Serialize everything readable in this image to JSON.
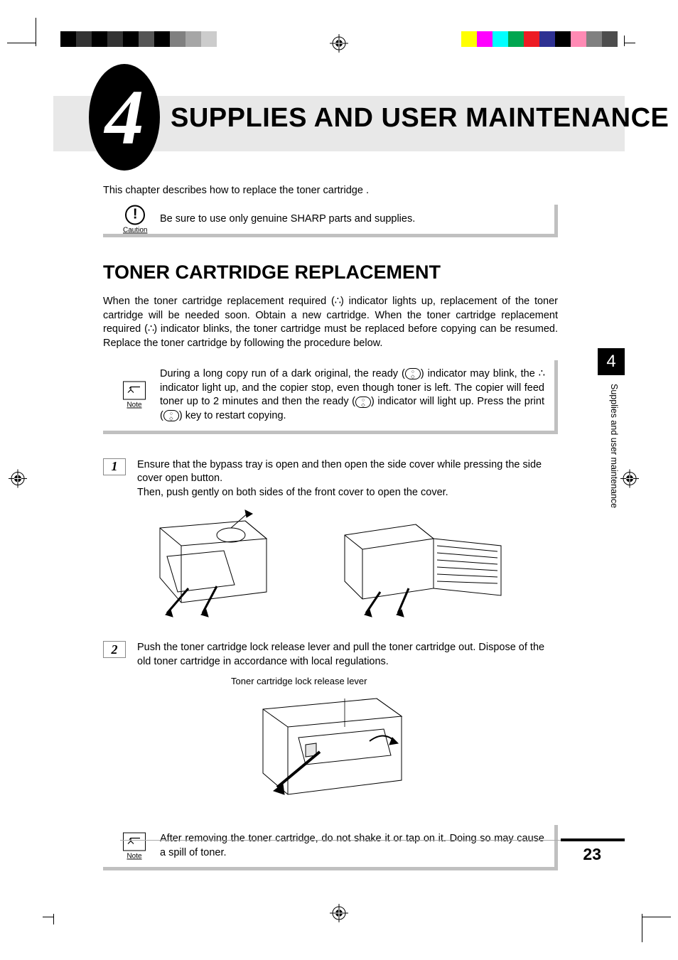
{
  "print_marks": {
    "left_bars": [
      "#000000",
      "#333333",
      "#000000",
      "#333333",
      "#000000",
      "#555555",
      "#000000",
      "#808080",
      "#a6a6a6",
      "#cccccc"
    ],
    "right_bars": [
      "#ffff00",
      "#ff00ff",
      "#00ffff",
      "#00a650",
      "#ed1c24",
      "#2e3192",
      "#000000",
      "#ff8ab4",
      "#808080",
      "#4d4d4d"
    ]
  },
  "chapter": {
    "number": "4",
    "title": "SUPPLIES AND USER MAINTENANCE"
  },
  "intro": "This chapter describes how to replace the toner cartridge .",
  "caution": {
    "label": "Caution",
    "text": "Be sure to use only genuine SHARP parts and supplies."
  },
  "section": {
    "title": "TONER CARTRIDGE REPLACEMENT"
  },
  "body1": "When the toner cartridge replacement required ( ∴ ) indicator lights up, replacement of the toner cartridge will be needed soon. Obtain a new cartridge. When the toner cartridge replacement required ( ∴ ) indicator blinks, the toner cartridge must be replaced before copying can be resumed. Replace the toner cartridge by following the procedure below.",
  "note1": {
    "label": "Note",
    "text": "During a long copy run of a dark original, the ready (  ) indicator may blink, the ∴ indicator light up, and the copier stop, even though toner is left. The copier will feed toner up to 2 minutes and then the ready (  ) indicator will light up. Press the print (  ) key to restart copying."
  },
  "steps": {
    "s1": {
      "num": "1",
      "text": "Ensure that the bypass tray is open and then open the side cover while pressing the side cover open button.\nThen, push gently on both sides of the front cover to open the cover."
    },
    "s2": {
      "num": "2",
      "text": "Push the toner cartridge lock release lever and pull the toner cartridge out. Dispose of the old toner cartridge in accordance with local regulations."
    }
  },
  "fig2": {
    "label": "Toner cartridge lock release lever"
  },
  "note2": {
    "label": "Note",
    "text": "After removing the toner cartridge, do not shake it or tap on it. Doing so may cause a spill of toner."
  },
  "side": {
    "tab": "4",
    "text": "Supplies and user maintenance"
  },
  "page": "23"
}
